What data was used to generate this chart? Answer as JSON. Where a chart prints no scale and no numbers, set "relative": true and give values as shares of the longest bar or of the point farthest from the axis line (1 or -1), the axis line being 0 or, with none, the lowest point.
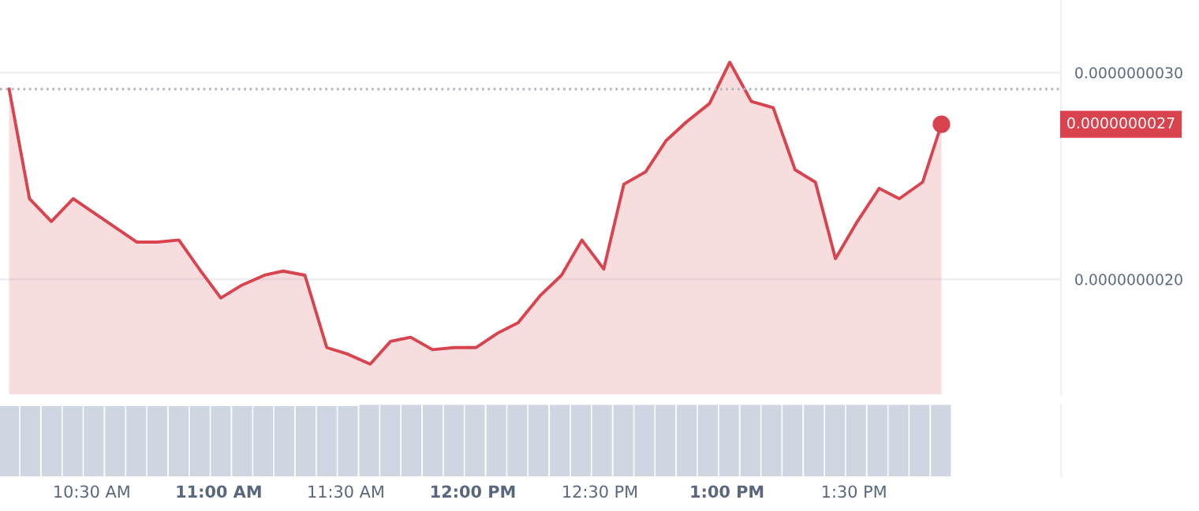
{
  "chart_data": [
    {
      "type": "area",
      "x": [
        10.175,
        10.255,
        10.341,
        10.427,
        10.678,
        10.757,
        10.843,
        10.929,
        11.008,
        11.088,
        11.18,
        11.253,
        11.339,
        11.425,
        11.504,
        11.596,
        11.676,
        11.755,
        11.841,
        11.927,
        12.013,
        12.098,
        12.178,
        12.264,
        12.349,
        12.429,
        12.515,
        12.594,
        12.68,
        12.76,
        12.839,
        12.931,
        13.011,
        13.096,
        13.182,
        13.268,
        13.348,
        13.427,
        13.513,
        13.599,
        13.678,
        13.77,
        13.844
      ],
      "series": [
        {
          "color": "#d9434e",
          "values": [
            2.92e-09,
            2.39e-09,
            2.28e-09,
            2.39e-09,
            2.18e-09,
            2.18e-09,
            2.19e-09,
            2.04e-09,
            1.91e-09,
            1.97e-09,
            2.02e-09,
            2.04e-09,
            2.02e-09,
            1.67e-09,
            1.64e-09,
            1.59e-09,
            1.7e-09,
            1.72e-09,
            1.66e-09,
            1.67e-09,
            1.67e-09,
            1.74e-09,
            1.79e-09,
            1.92e-09,
            2.02e-09,
            2.19e-09,
            2.05e-09,
            2.46e-09,
            2.52e-09,
            2.67e-09,
            2.76e-09,
            2.85e-09,
            3.05e-09,
            2.86e-09,
            2.83e-09,
            2.53e-09,
            2.47e-09,
            2.1e-09,
            2.28e-09,
            2.44e-09,
            2.39e-09,
            2.47e-09,
            2.75e-09
          ]
        }
      ],
      "xlim": [
        10.139,
        14.315
      ],
      "ylim": [
        1.443e-09,
        3.351e-09
      ],
      "yticks": [
        {
          "value": 2e-09,
          "label": "0.0000000020"
        },
        {
          "value": 3e-09,
          "label": "0.0000000030"
        }
      ],
      "ref_lines": [
        {
          "axis": "y",
          "value": 2.92e-09,
          "color": "#b0b5bd",
          "line_style": "dotted"
        }
      ],
      "annotations": [
        "0.0000000027"
      ],
      "grid": "y",
      "tick_labels": "y"
    },
    {
      "type": "bar",
      "relative": true,
      "x": [
        10.175,
        10.258,
        10.342,
        10.425,
        10.508,
        10.592,
        10.675,
        10.758,
        10.842,
        10.925,
        11.008,
        11.092,
        11.175,
        11.258,
        11.342,
        11.425,
        11.508,
        11.592,
        11.675,
        11.758,
        11.842,
        11.925,
        12.008,
        12.092,
        12.175,
        12.258,
        12.342,
        12.425,
        12.508,
        12.592,
        12.675,
        12.758,
        12.842,
        12.925,
        13.008,
        13.092,
        13.175,
        13.258,
        13.342,
        13.425,
        13.508,
        13.592,
        13.675,
        13.758,
        13.842
      ],
      "series": [
        {
          "color": "#cfd6e1",
          "values": [
            0.98,
            0.98,
            0.98,
            0.98,
            0.98,
            0.98,
            0.98,
            0.98,
            0.98,
            0.98,
            0.98,
            0.98,
            0.98,
            0.98,
            0.98,
            0.98,
            0.98,
            1,
            1,
            1,
            1,
            1,
            1,
            1,
            1,
            1,
            1,
            1,
            1,
            1,
            1,
            1,
            1,
            1,
            1,
            1,
            1,
            1,
            1,
            1,
            1,
            1,
            1,
            1,
            1
          ]
        }
      ],
      "xlim": [
        10.139,
        14.315
      ],
      "xticks": [
        {
          "value": 10.5,
          "label": "10:30 AM"
        },
        {
          "value": 11,
          "label": "11:00 AM"
        },
        {
          "value": 11.5,
          "label": "11:30 AM"
        },
        {
          "value": 12,
          "label": "12:00 PM"
        },
        {
          "value": 12.5,
          "label": "12:30 PM"
        },
        {
          "value": 13,
          "label": "1:00 PM"
        },
        {
          "value": 13.5,
          "label": "1:30 PM"
        }
      ],
      "tick_labels": "x",
      "grid": false
    }
  ]
}
